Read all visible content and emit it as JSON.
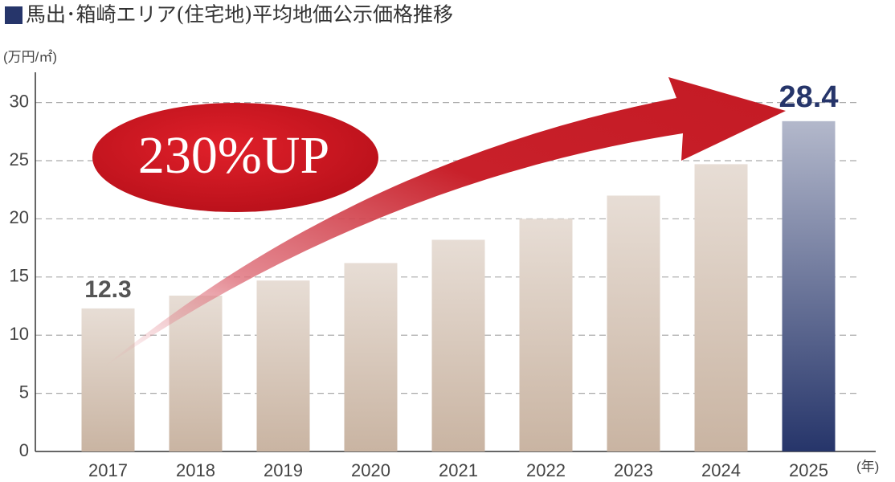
{
  "chart_data": {
    "type": "bar",
    "title": "馬出･箱崎エリア(住宅地)平均地価公示価格推移",
    "y_unit": "(万円/㎡)",
    "x_unit": "(年)",
    "annotation": "230%UP",
    "categories": [
      "2017",
      "2018",
      "2019",
      "2020",
      "2021",
      "2022",
      "2023",
      "2024",
      "2025"
    ],
    "values": [
      12.3,
      13.4,
      14.7,
      16.2,
      18.2,
      20.0,
      22.0,
      24.7,
      28.4
    ],
    "value_labels": [
      "12.3",
      null,
      null,
      null,
      null,
      null,
      null,
      null,
      "28.4"
    ],
    "colors": [
      "#c9b4a2",
      "#c9b4a2",
      "#c9b4a2",
      "#c9b4a2",
      "#c9b4a2",
      "#c9b4a2",
      "#c9b4a2",
      "#c9b4a2",
      "#26356a"
    ],
    "ylim": [
      0,
      32.6
    ],
    "yticks": [
      0,
      5,
      10,
      15,
      20,
      25,
      30
    ],
    "grid": true
  }
}
